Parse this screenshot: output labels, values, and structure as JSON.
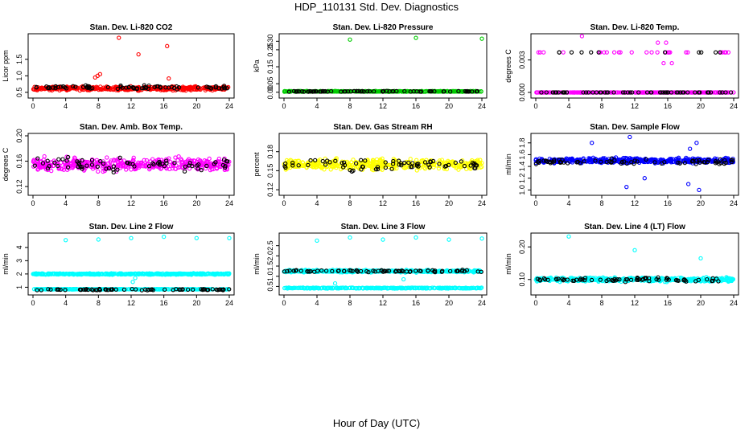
{
  "figure": {
    "title": "HDP_110131  Std. Dev. Diagnostics",
    "xlabel": "Hour of Day (UTC)"
  },
  "chart_data": [
    {
      "type": "scatter",
      "title": "Stan. Dev. Li-820 CO2",
      "ylabel": "Licor ppm",
      "xlim": [
        0,
        24
      ],
      "ylim": [
        0.4,
        2.2
      ],
      "xticks": [
        "0",
        "4",
        "8",
        "12",
        "16",
        "20",
        "24"
      ],
      "yticks": [
        "0.5",
        "1.0",
        "1.5"
      ],
      "color": "#ff0000",
      "baseline": 0.62,
      "spread": 0.08,
      "black_baseline": 0.65,
      "outliers": [
        [
          10.5,
          2.15
        ],
        [
          12.9,
          1.65
        ],
        [
          16.4,
          1.9
        ],
        [
          16.6,
          0.92
        ],
        [
          7.9,
          1.0
        ],
        [
          8.2,
          1.05
        ],
        [
          7.6,
          0.95
        ]
      ]
    },
    {
      "type": "scatter",
      "title": "Stan. Dev. Li-820 Pressure",
      "ylabel": "kPa",
      "xlim": [
        0,
        24
      ],
      "ylim": [
        -0.02,
        0.33
      ],
      "xticks": [
        "0",
        "4",
        "8",
        "12",
        "16",
        "20",
        "24"
      ],
      "yticks": [
        "0.00",
        "0.05",
        "0.15",
        "0.25",
        "0.30"
      ],
      "color": "#00cc00",
      "baseline": 0.005,
      "spread": 0.003,
      "black_baseline": 0.005,
      "outliers": [
        [
          8,
          0.31
        ],
        [
          16,
          0.32
        ],
        [
          24,
          0.315
        ]
      ]
    },
    {
      "type": "scatter",
      "title": "Stan. Dev. Li-820 Temp.",
      "ylabel": "degrees C",
      "xlim": [
        0,
        24
      ],
      "ylim": [
        -0.0003,
        0.0052
      ],
      "xticks": [
        "0",
        "4",
        "8",
        "12",
        "16",
        "20",
        "24"
      ],
      "yticks": [
        "0.000",
        "0.003"
      ],
      "color": "#ff00ff",
      "baseline": 0.0,
      "spread": 0,
      "black_baseline": 0.0,
      "level2": 0.0037,
      "outliers": [
        [
          5.6,
          0.0052
        ],
        [
          14.8,
          0.0046
        ],
        [
          15.8,
          0.0046
        ],
        [
          15.5,
          0.0027
        ],
        [
          16.5,
          0.0027
        ]
      ]
    },
    {
      "type": "scatter",
      "title": "Stan. Dev. Amb. Box Temp.",
      "ylabel": "degrees C",
      "xlim": [
        0,
        24
      ],
      "ylim": [
        0.11,
        0.2
      ],
      "xticks": [
        "0",
        "4",
        "8",
        "12",
        "16",
        "20",
        "24"
      ],
      "yticks": [
        "0.12",
        "0.16",
        "0.20"
      ],
      "color": "#ff00ff",
      "baseline": 0.155,
      "spread": 0.014,
      "black_baseline": 0.155,
      "outliers": []
    },
    {
      "type": "scatter",
      "title": "Stan. Dev. Gas Stream RH",
      "ylabel": "percent",
      "xlim": [
        0,
        24
      ],
      "ylim": [
        0.115,
        0.205
      ],
      "xticks": [
        "0",
        "4",
        "8",
        "12",
        "16",
        "20",
        "24"
      ],
      "yticks": [
        "0.12",
        "0.15",
        "0.18"
      ],
      "color": "#ffff00",
      "baseline": 0.16,
      "spread": 0.012,
      "black_baseline": 0.16,
      "outliers": []
    },
    {
      "type": "scatter",
      "title": "Stan. Dev. Sample Flow",
      "ylabel": "ml/min",
      "xlim": [
        0,
        24
      ],
      "ylim": [
        0.95,
        1.92
      ],
      "xticks": [
        "0",
        "4",
        "8",
        "12",
        "16",
        "20",
        "24"
      ],
      "yticks": [
        "1.0",
        "1.2",
        "1.4",
        "1.6",
        "1.8"
      ],
      "color": "#0000ff",
      "baseline": 1.5,
      "spread": 0.06,
      "black_baseline": 1.48,
      "outliers": [
        [
          11.4,
          1.9
        ],
        [
          11.0,
          1.05
        ],
        [
          13.2,
          1.2
        ],
        [
          18.5,
          1.1
        ],
        [
          19.8,
          1.0
        ],
        [
          19.5,
          1.8
        ],
        [
          18.7,
          1.7
        ],
        [
          6.8,
          1.8
        ]
      ]
    },
    {
      "type": "scatter",
      "title": "Stan. Dev. Line 2 Flow",
      "ylabel": "ml/min",
      "xlim": [
        0,
        24
      ],
      "ylim": [
        0.6,
        4.9
      ],
      "xticks": [
        "0",
        "4",
        "8",
        "12",
        "16",
        "20",
        "24"
      ],
      "yticks": [
        "1",
        "2",
        "3",
        "4"
      ],
      "color": "#00ffff",
      "baseline": 2.0,
      "spread": 0.07,
      "black_baseline": 0.82,
      "level2": 0.85,
      "outliers": [
        [
          4,
          4.55
        ],
        [
          8,
          4.6
        ],
        [
          12,
          4.7
        ],
        [
          16,
          4.8
        ],
        [
          20,
          4.7
        ],
        [
          24,
          4.7
        ],
        [
          12.2,
          1.4
        ],
        [
          12.5,
          1.7
        ]
      ]
    },
    {
      "type": "scatter",
      "title": "Stan. Dev. Line 3 Flow",
      "ylabel": "ml/min",
      "xlim": [
        0,
        24
      ],
      "ylim": [
        0.2,
        3.0
      ],
      "xticks": [
        "0",
        "4",
        "8",
        "12",
        "16",
        "20",
        "24"
      ],
      "yticks": [
        "0.5",
        "1.0",
        "1.5",
        "2.0",
        "2.5"
      ],
      "color": "#00ffff",
      "baseline": 1.25,
      "spread": 0.08,
      "black_baseline": 1.25,
      "level2": 0.42,
      "outliers": [
        [
          4,
          2.75
        ],
        [
          8,
          2.9
        ],
        [
          12,
          2.8
        ],
        [
          16,
          2.9
        ],
        [
          20,
          2.8
        ],
        [
          24,
          2.85
        ],
        [
          6.2,
          0.65
        ],
        [
          14.5,
          0.85
        ]
      ]
    },
    {
      "type": "scatter",
      "title": "Stan. Dev. Line 4 (LT) Flow",
      "ylabel": "ml/min",
      "xlim": [
        0,
        24
      ],
      "ylim": [
        0.06,
        0.235
      ],
      "xticks": [
        "0",
        "4",
        "8",
        "12",
        "16",
        "20",
        "24"
      ],
      "yticks": [
        "0.10",
        "0.20"
      ],
      "color": "#00ffff",
      "baseline": 0.1,
      "spread": 0.009,
      "black_baseline": 0.1,
      "outliers": [
        [
          4,
          0.232
        ],
        [
          12,
          0.19
        ],
        [
          20,
          0.165
        ]
      ]
    }
  ]
}
